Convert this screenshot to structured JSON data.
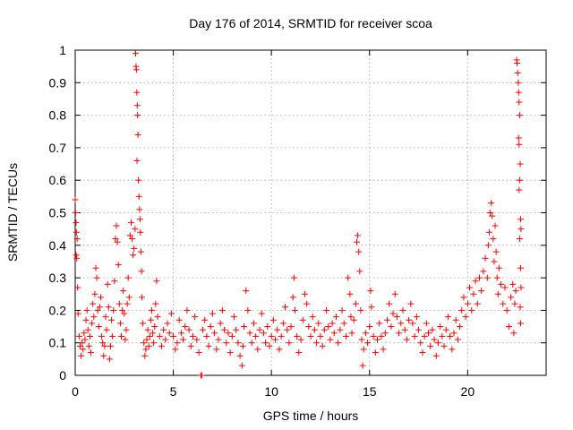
{
  "chart_data": {
    "type": "scatter",
    "title": "Day 176 of 2014, SRMTID for receiver scoa",
    "xlabel": "GPS time / hours",
    "ylabel": "SRMTID / TECUs",
    "xlim": [
      0,
      24
    ],
    "ylim": [
      0,
      1
    ],
    "xticks": [
      0,
      5,
      10,
      15,
      20
    ],
    "xtick_labels": [
      "0",
      "5",
      "10",
      "15",
      "20"
    ],
    "yticks": [
      0,
      0.1,
      0.2,
      0.3,
      0.4,
      0.5,
      0.6,
      0.7,
      0.8,
      0.9,
      1
    ],
    "ytick_labels": [
      "0",
      "0.1",
      "0.2",
      "0.3",
      "0.4",
      "0.5",
      "0.6",
      "0.7",
      "0.8",
      "0.9",
      "1"
    ],
    "grid": true,
    "marker": "+",
    "color": "#ff0000",
    "series": [
      {
        "name": "SRMTID",
        "points": [
          [
            0.0,
            0.54
          ],
          [
            0.02,
            0.5
          ],
          [
            0.04,
            0.47
          ],
          [
            0.06,
            0.44
          ],
          [
            0.05,
            0.37
          ],
          [
            0.08,
            0.36
          ],
          [
            0.1,
            0.42
          ],
          [
            0.12,
            0.27
          ],
          [
            0.15,
            0.19
          ],
          [
            0.2,
            0.12
          ],
          [
            0.25,
            0.09
          ],
          [
            0.3,
            0.06
          ],
          [
            0.35,
            0.1
          ],
          [
            0.4,
            0.08
          ],
          [
            0.45,
            0.13
          ],
          [
            0.5,
            0.11
          ],
          [
            0.55,
            0.17
          ],
          [
            0.6,
            0.2
          ],
          [
            0.65,
            0.14
          ],
          [
            0.7,
            0.09
          ],
          [
            0.75,
            0.12
          ],
          [
            0.8,
            0.07
          ],
          [
            0.85,
            0.16
          ],
          [
            0.9,
            0.22
          ],
          [
            0.95,
            0.18
          ],
          [
            1.0,
            0.25
          ],
          [
            1.05,
            0.33
          ],
          [
            1.1,
            0.3
          ],
          [
            1.15,
            0.2
          ],
          [
            1.2,
            0.15
          ],
          [
            1.25,
            0.21
          ],
          [
            1.3,
            0.24
          ],
          [
            1.35,
            0.12
          ],
          [
            1.4,
            0.1
          ],
          [
            1.45,
            0.06
          ],
          [
            1.5,
            0.09
          ],
          [
            1.55,
            0.18
          ],
          [
            1.6,
            0.14
          ],
          [
            1.65,
            0.28
          ],
          [
            1.7,
            0.21
          ],
          [
            1.75,
            0.05
          ],
          [
            1.8,
            0.09
          ],
          [
            1.85,
            0.17
          ],
          [
            1.9,
            0.12
          ],
          [
            1.95,
            0.2
          ],
          [
            2.0,
            0.29
          ],
          [
            2.05,
            0.42
          ],
          [
            2.1,
            0.46
          ],
          [
            2.15,
            0.41
          ],
          [
            2.2,
            0.34
          ],
          [
            2.25,
            0.22
          ],
          [
            2.3,
            0.16
          ],
          [
            2.35,
            0.12
          ],
          [
            2.4,
            0.2
          ],
          [
            2.45,
            0.26
          ],
          [
            2.5,
            0.19
          ],
          [
            2.55,
            0.11
          ],
          [
            2.6,
            0.14
          ],
          [
            2.65,
            0.22
          ],
          [
            2.7,
            0.3
          ],
          [
            2.75,
            0.24
          ],
          [
            2.8,
            0.43
          ],
          [
            2.85,
            0.47
          ],
          [
            2.9,
            0.42
          ],
          [
            2.95,
            0.37
          ],
          [
            3.0,
            0.39
          ],
          [
            3.05,
            0.45
          ],
          [
            3.08,
            0.99
          ],
          [
            3.1,
            0.95
          ],
          [
            3.12,
            0.94
          ],
          [
            3.14,
            0.87
          ],
          [
            3.16,
            0.83
          ],
          [
            3.18,
            0.8
          ],
          [
            3.2,
            0.74
          ],
          [
            3.15,
            0.66
          ],
          [
            3.22,
            0.6
          ],
          [
            3.25,
            0.55
          ],
          [
            3.28,
            0.51
          ],
          [
            3.3,
            0.48
          ],
          [
            3.32,
            0.44
          ],
          [
            3.35,
            0.38
          ],
          [
            3.38,
            0.32
          ],
          [
            3.4,
            0.24
          ],
          [
            3.45,
            0.16
          ],
          [
            3.5,
            0.1
          ],
          [
            3.55,
            0.06
          ],
          [
            3.6,
            0.08
          ],
          [
            3.65,
            0.11
          ],
          [
            3.7,
            0.14
          ],
          [
            3.75,
            0.09
          ],
          [
            3.8,
            0.12
          ],
          [
            3.85,
            0.17
          ],
          [
            3.9,
            0.2
          ],
          [
            3.95,
            0.13
          ],
          [
            4.0,
            0.1
          ],
          [
            4.05,
            0.15
          ],
          [
            4.1,
            0.22
          ],
          [
            4.15,
            0.29
          ],
          [
            4.2,
            0.18
          ],
          [
            4.3,
            0.12
          ],
          [
            4.4,
            0.09
          ],
          [
            4.5,
            0.14
          ],
          [
            4.6,
            0.11
          ],
          [
            4.7,
            0.16
          ],
          [
            4.8,
            0.13
          ],
          [
            4.9,
            0.19
          ],
          [
            5.0,
            0.12
          ],
          [
            5.1,
            0.08
          ],
          [
            5.2,
            0.1
          ],
          [
            5.3,
            0.17
          ],
          [
            5.4,
            0.13
          ],
          [
            5.5,
            0.11
          ],
          [
            5.6,
            0.15
          ],
          [
            5.7,
            0.2
          ],
          [
            5.8,
            0.14
          ],
          [
            5.9,
            0.09
          ],
          [
            6.0,
            0.12
          ],
          [
            6.1,
            0.18
          ],
          [
            6.2,
            0.11
          ],
          [
            6.3,
            0.07
          ],
          [
            6.4,
            0.0
          ],
          [
            6.45,
            0.0
          ],
          [
            6.5,
            0.14
          ],
          [
            6.6,
            0.17
          ],
          [
            6.7,
            0.12
          ],
          [
            6.8,
            0.09
          ],
          [
            6.9,
            0.15
          ],
          [
            7.0,
            0.19
          ],
          [
            7.1,
            0.13
          ],
          [
            7.2,
            0.08
          ],
          [
            7.3,
            0.11
          ],
          [
            7.4,
            0.16
          ],
          [
            7.5,
            0.2
          ],
          [
            7.6,
            0.14
          ],
          [
            7.7,
            0.1
          ],
          [
            7.8,
            0.13
          ],
          [
            7.9,
            0.07
          ],
          [
            8.0,
            0.12
          ],
          [
            8.1,
            0.18
          ],
          [
            8.2,
            0.14
          ],
          [
            8.3,
            0.1
          ],
          [
            8.4,
            0.06
          ],
          [
            8.5,
            0.03
          ],
          [
            8.55,
            0.09
          ],
          [
            8.6,
            0.15
          ],
          [
            8.7,
            0.26
          ],
          [
            8.8,
            0.2
          ],
          [
            8.9,
            0.13
          ],
          [
            9.0,
            0.1
          ],
          [
            9.1,
            0.16
          ],
          [
            9.2,
            0.12
          ],
          [
            9.3,
            0.08
          ],
          [
            9.4,
            0.14
          ],
          [
            9.5,
            0.19
          ],
          [
            9.6,
            0.13
          ],
          [
            9.7,
            0.1
          ],
          [
            9.8,
            0.15
          ],
          [
            9.9,
            0.09
          ],
          [
            10.0,
            0.12
          ],
          [
            10.1,
            0.17
          ],
          [
            10.2,
            0.11
          ],
          [
            10.3,
            0.14
          ],
          [
            10.4,
            0.08
          ],
          [
            10.5,
            0.12
          ],
          [
            10.6,
            0.16
          ],
          [
            10.7,
            0.21
          ],
          [
            10.8,
            0.14
          ],
          [
            10.9,
            0.1
          ],
          [
            11.0,
            0.15
          ],
          [
            11.1,
            0.24
          ],
          [
            11.15,
            0.3
          ],
          [
            11.2,
            0.2
          ],
          [
            11.3,
            0.12
          ],
          [
            11.4,
            0.07
          ],
          [
            11.5,
            0.11
          ],
          [
            11.6,
            0.17
          ],
          [
            11.7,
            0.25
          ],
          [
            11.8,
            0.22
          ],
          [
            11.9,
            0.15
          ],
          [
            12.0,
            0.12
          ],
          [
            12.1,
            0.18
          ],
          [
            12.2,
            0.14
          ],
          [
            12.3,
            0.1
          ],
          [
            12.4,
            0.16
          ],
          [
            12.5,
            0.12
          ],
          [
            12.6,
            0.09
          ],
          [
            12.7,
            0.14
          ],
          [
            12.8,
            0.2
          ],
          [
            12.9,
            0.15
          ],
          [
            13.0,
            0.11
          ],
          [
            13.1,
            0.16
          ],
          [
            13.2,
            0.13
          ],
          [
            13.3,
            0.18
          ],
          [
            13.4,
            0.1
          ],
          [
            13.5,
            0.14
          ],
          [
            13.6,
            0.2
          ],
          [
            13.7,
            0.16
          ],
          [
            13.8,
            0.12
          ],
          [
            13.9,
            0.3
          ],
          [
            14.0,
            0.25
          ],
          [
            14.05,
            0.18
          ],
          [
            14.1,
            0.13
          ],
          [
            14.2,
            0.17
          ],
          [
            14.3,
            0.22
          ],
          [
            14.35,
            0.41
          ],
          [
            14.4,
            0.43
          ],
          [
            14.45,
            0.38
          ],
          [
            14.5,
            0.32
          ],
          [
            14.55,
            0.2
          ],
          [
            14.6,
            0.11
          ],
          [
            14.65,
            0.03
          ],
          [
            14.7,
            0.08
          ],
          [
            14.8,
            0.13
          ],
          [
            14.9,
            0.1
          ],
          [
            15.0,
            0.15
          ],
          [
            15.05,
            0.26
          ],
          [
            15.1,
            0.21
          ],
          [
            15.2,
            0.12
          ],
          [
            15.3,
            0.07
          ],
          [
            15.4,
            0.11
          ],
          [
            15.5,
            0.16
          ],
          [
            15.6,
            0.12
          ],
          [
            15.7,
            0.08
          ],
          [
            15.8,
            0.13
          ],
          [
            15.9,
            0.17
          ],
          [
            16.0,
            0.22
          ],
          [
            16.1,
            0.15
          ],
          [
            16.2,
            0.19
          ],
          [
            16.3,
            0.25
          ],
          [
            16.4,
            0.18
          ],
          [
            16.5,
            0.13
          ],
          [
            16.6,
            0.16
          ],
          [
            16.7,
            0.2
          ],
          [
            16.8,
            0.14
          ],
          [
            16.9,
            0.11
          ],
          [
            17.0,
            0.17
          ],
          [
            17.1,
            0.22
          ],
          [
            17.2,
            0.16
          ],
          [
            17.3,
            0.12
          ],
          [
            17.4,
            0.18
          ],
          [
            17.5,
            0.14
          ],
          [
            17.6,
            0.1
          ],
          [
            17.7,
            0.07
          ],
          [
            17.8,
            0.12
          ],
          [
            17.9,
            0.16
          ],
          [
            18.0,
            0.13
          ],
          [
            18.1,
            0.09
          ],
          [
            18.2,
            0.14
          ],
          [
            18.3,
            0.11
          ],
          [
            18.4,
            0.06
          ],
          [
            18.5,
            0.1
          ],
          [
            18.6,
            0.15
          ],
          [
            18.7,
            0.12
          ],
          [
            18.8,
            0.09
          ],
          [
            18.9,
            0.14
          ],
          [
            19.0,
            0.18
          ],
          [
            19.1,
            0.12
          ],
          [
            19.2,
            0.08
          ],
          [
            19.3,
            0.13
          ],
          [
            19.4,
            0.17
          ],
          [
            19.5,
            0.11
          ],
          [
            19.6,
            0.15
          ],
          [
            19.7,
            0.2
          ],
          [
            19.8,
            0.24
          ],
          [
            19.9,
            0.18
          ],
          [
            20.0,
            0.22
          ],
          [
            20.1,
            0.27
          ],
          [
            20.2,
            0.2
          ],
          [
            20.3,
            0.25
          ],
          [
            20.4,
            0.29
          ],
          [
            20.5,
            0.22
          ],
          [
            20.6,
            0.3
          ],
          [
            20.7,
            0.26
          ],
          [
            20.8,
            0.32
          ],
          [
            20.9,
            0.36
          ],
          [
            21.0,
            0.3
          ],
          [
            21.05,
            0.4
          ],
          [
            21.1,
            0.44
          ],
          [
            21.15,
            0.5
          ],
          [
            21.2,
            0.53
          ],
          [
            21.25,
            0.49
          ],
          [
            21.3,
            0.42
          ],
          [
            21.35,
            0.35
          ],
          [
            21.4,
            0.46
          ],
          [
            21.45,
            0.38
          ],
          [
            21.5,
            0.3
          ],
          [
            21.55,
            0.25
          ],
          [
            21.6,
            0.33
          ],
          [
            21.7,
            0.28
          ],
          [
            21.8,
            0.22
          ],
          [
            21.9,
            0.27
          ],
          [
            22.0,
            0.2
          ],
          [
            22.1,
            0.15
          ],
          [
            22.2,
            0.24
          ],
          [
            22.3,
            0.28
          ],
          [
            22.35,
            0.13
          ],
          [
            22.4,
            0.22
          ],
          [
            22.45,
            0.26
          ],
          [
            22.5,
            0.97
          ],
          [
            22.52,
            0.96
          ],
          [
            22.55,
            0.93
          ],
          [
            22.58,
            0.9
          ],
          [
            22.6,
            0.87
          ],
          [
            22.62,
            0.84
          ],
          [
            22.65,
            0.8
          ],
          [
            22.6,
            0.73
          ],
          [
            22.62,
            0.71
          ],
          [
            22.68,
            0.65
          ],
          [
            22.65,
            0.6
          ],
          [
            22.62,
            0.57
          ],
          [
            22.7,
            0.48
          ],
          [
            22.72,
            0.45
          ],
          [
            22.65,
            0.42
          ],
          [
            22.7,
            0.33
          ],
          [
            22.72,
            0.27
          ],
          [
            22.68,
            0.21
          ],
          [
            22.7,
            0.16
          ]
        ]
      }
    ]
  }
}
